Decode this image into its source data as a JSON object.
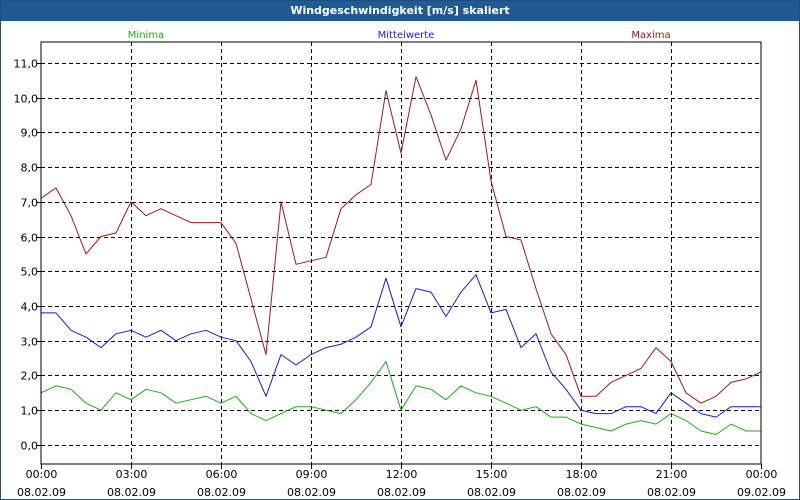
{
  "window": {
    "title": "Windgeschwindigkeit [m/s] skaliert"
  },
  "colors": {
    "minima": "#1aab1a",
    "mean": "#1a1acd",
    "maxima": "#a01818",
    "grid": "#000000"
  },
  "chart_data": {
    "type": "line",
    "title": "Windgeschwindigkeit [m/s] skaliert",
    "xlabel": "",
    "ylabel": "",
    "ylim": [
      -0.55,
      11.6
    ],
    "xlim": [
      0,
      24
    ],
    "grid": true,
    "legend_position": "top",
    "y_ticks": [
      "0,0",
      "1,0",
      "2,0",
      "3,0",
      "4,0",
      "5,0",
      "6,0",
      "7,0",
      "8,0",
      "9,0",
      "10,0",
      "11,0"
    ],
    "y_tick_values": [
      0,
      1,
      2,
      3,
      4,
      5,
      6,
      7,
      8,
      9,
      10,
      11
    ],
    "x_ticks": [
      {
        "time": "00:00",
        "date": "08.02.09"
      },
      {
        "time": "03:00",
        "date": "08.02.09"
      },
      {
        "time": "06:00",
        "date": "08.02.09"
      },
      {
        "time": "09:00",
        "date": "08.02.09"
      },
      {
        "time": "12:00",
        "date": "08.02.09"
      },
      {
        "time": "15:00",
        "date": "08.02.09"
      },
      {
        "time": "18:00",
        "date": "08.02.09"
      },
      {
        "time": "21:00",
        "date": "08.02.09"
      },
      {
        "time": "00:00",
        "date": "09.02.09"
      }
    ],
    "x_tick_values": [
      0,
      3,
      6,
      9,
      12,
      15,
      18,
      21,
      24
    ],
    "series": [
      {
        "name": "Minima",
        "x": [
          0,
          0.5,
          1,
          1.5,
          2,
          2.5,
          3,
          3.5,
          4,
          4.5,
          5,
          5.5,
          6,
          6.5,
          7,
          7.5,
          8,
          8.5,
          9,
          9.5,
          10,
          10.5,
          11,
          11.5,
          12,
          12.5,
          13,
          13.5,
          14,
          14.5,
          15,
          15.5,
          16,
          16.5,
          17,
          17.5,
          18,
          18.5,
          19,
          19.5,
          20,
          20.5,
          21,
          21.5,
          22,
          22.5,
          23,
          23.5,
          24
        ],
        "values": [
          1.5,
          1.7,
          1.6,
          1.2,
          1.0,
          1.5,
          1.3,
          1.6,
          1.5,
          1.2,
          1.3,
          1.4,
          1.2,
          1.4,
          0.9,
          0.7,
          0.9,
          1.1,
          1.1,
          1.0,
          0.9,
          1.3,
          1.8,
          2.4,
          1.0,
          1.7,
          1.6,
          1.3,
          1.7,
          1.5,
          1.4,
          1.2,
          1.0,
          1.1,
          0.8,
          0.8,
          0.6,
          0.5,
          0.4,
          0.6,
          0.7,
          0.6,
          0.9,
          0.7,
          0.4,
          0.3,
          0.6,
          0.4,
          0.4
        ]
      },
      {
        "name": "Mittelwerte",
        "x": [
          0,
          0.5,
          1,
          1.5,
          2,
          2.5,
          3,
          3.5,
          4,
          4.5,
          5,
          5.5,
          6,
          6.5,
          7,
          7.5,
          8,
          8.5,
          9,
          9.5,
          10,
          10.5,
          11,
          11.5,
          12,
          12.5,
          13,
          13.5,
          14,
          14.5,
          15,
          15.5,
          16,
          16.5,
          17,
          17.5,
          18,
          18.5,
          19,
          19.5,
          20,
          20.5,
          21,
          21.5,
          22,
          22.5,
          23,
          23.5,
          24
        ],
        "values": [
          3.8,
          3.8,
          3.3,
          3.1,
          2.8,
          3.2,
          3.3,
          3.1,
          3.3,
          3.0,
          3.2,
          3.3,
          3.1,
          3.0,
          2.4,
          1.4,
          2.6,
          2.3,
          2.6,
          2.8,
          2.9,
          3.1,
          3.4,
          4.8,
          3.4,
          4.5,
          4.4,
          3.7,
          4.4,
          4.9,
          3.8,
          3.9,
          2.8,
          3.2,
          2.1,
          1.6,
          1.0,
          0.9,
          0.9,
          1.1,
          1.1,
          0.9,
          1.5,
          1.2,
          0.9,
          0.8,
          1.1,
          1.1,
          1.1
        ]
      },
      {
        "name": "Maxima",
        "x": [
          0,
          0.5,
          1,
          1.5,
          2,
          2.5,
          3,
          3.5,
          4,
          4.5,
          5,
          5.5,
          6,
          6.5,
          7,
          7.5,
          8,
          8.5,
          9,
          9.5,
          10,
          10.5,
          11,
          11.5,
          12,
          12.5,
          13,
          13.5,
          14,
          14.5,
          15,
          15.5,
          16,
          16.5,
          17,
          17.5,
          18,
          18.5,
          19,
          19.5,
          20,
          20.5,
          21,
          21.5,
          22,
          22.5,
          23,
          23.5,
          24
        ],
        "values": [
          7.1,
          7.4,
          6.6,
          5.5,
          6.0,
          6.1,
          7.0,
          6.6,
          6.8,
          6.6,
          6.4,
          6.4,
          6.4,
          5.8,
          4.2,
          2.6,
          7.0,
          5.2,
          5.3,
          5.4,
          6.8,
          7.2,
          7.5,
          10.2,
          8.4,
          10.6,
          9.5,
          8.2,
          9.1,
          10.5,
          7.6,
          6.0,
          5.9,
          4.5,
          3.2,
          2.6,
          1.4,
          1.4,
          1.8,
          2.0,
          2.2,
          2.8,
          2.4,
          1.5,
          1.2,
          1.4,
          1.8,
          1.9,
          2.1
        ]
      }
    ]
  }
}
